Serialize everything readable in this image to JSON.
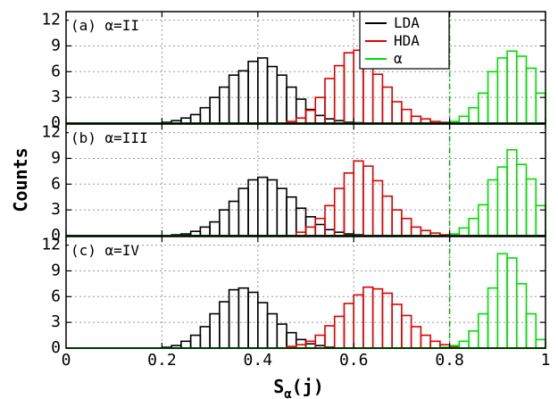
{
  "chart_data": {
    "type": "bar",
    "histogram": true,
    "xlabel": "S",
    "xlabel_sub": "α",
    "xlabel_suffix": "(j)",
    "ylabel": "Counts",
    "xlim": [
      0,
      1
    ],
    "ylim": [
      0,
      13
    ],
    "bin_width": 0.02,
    "x_ticks": [
      "0",
      "0.2",
      "0.4",
      "0.6",
      "0.8",
      "1"
    ],
    "y_ticks": [
      "0",
      "3",
      "6",
      "9",
      "12"
    ],
    "grid": true,
    "cutoff_line": 0.8,
    "series_colors": {
      "LDA": "#000000",
      "HDA": "#e00000",
      "alpha": "#00dd00"
    },
    "cutoff_color": "#00bb00",
    "legend": {
      "position": "top-right",
      "entries": [
        {
          "key": "LDA",
          "label": "LDA"
        },
        {
          "key": "HDA",
          "label": "HDA"
        },
        {
          "key": "alpha",
          "label": "α"
        }
      ]
    },
    "panels": [
      {
        "label": "(a) α=II",
        "series": {
          "LDA": {
            "x_start": 0.2,
            "values": [
              0.1,
              0.3,
              0.6,
              1.0,
              1.8,
              3.0,
              4.2,
              5.6,
              6.1,
              7.2,
              7.6,
              6.6,
              5.6,
              4.2,
              2.8,
              1.6,
              0.9,
              0.5,
              0.3,
              0.1,
              0.05
            ]
          },
          "HDA": {
            "x_start": 0.46,
            "values": [
              0.2,
              0.6,
              1.5,
              3.0,
              5.2,
              6.7,
              8.2,
              8.5,
              7.6,
              5.7,
              4.2,
              2.5,
              1.6,
              0.8,
              0.5,
              0.2,
              0.1
            ]
          },
          "alpha": {
            "x_start": 0.8,
            "values": [
              0.2,
              0.8,
              1.8,
              3.5,
              6.0,
              7.6,
              8.4,
              7.8,
              6.4,
              3.5,
              1.0
            ]
          }
        }
      },
      {
        "label": "(b) α=III",
        "series": {
          "LDA": {
            "x_start": 0.22,
            "values": [
              0.1,
              0.2,
              0.5,
              1.0,
              1.6,
              3.0,
              4.0,
              5.5,
              6.5,
              6.8,
              6.5,
              5.5,
              4.5,
              3.2,
              2.2,
              1.3,
              0.7,
              0.4,
              0.2,
              0.1
            ]
          },
          "HDA": {
            "x_start": 0.48,
            "values": [
              0.4,
              1.0,
              2.0,
              3.5,
              5.5,
              7.3,
              8.7,
              8.1,
              6.4,
              4.6,
              3.0,
              2.0,
              1.0,
              0.6,
              0.3,
              0.1
            ]
          },
          "alpha": {
            "x_start": 0.8,
            "values": [
              0.2,
              0.9,
              2.0,
              3.6,
              6.5,
              8.0,
              10.0,
              8.3,
              6.6,
              3.5,
              1.0
            ]
          }
        }
      },
      {
        "label": "(c) α=IV",
        "series": {
          "LDA": {
            "x_start": 0.2,
            "values": [
              0.1,
              0.3,
              0.8,
              1.5,
              2.5,
              4.0,
              5.4,
              6.8,
              7.0,
              6.5,
              5.3,
              4.0,
              2.8,
              1.8,
              1.0,
              0.5,
              0.3,
              0.1
            ]
          },
          "HDA": {
            "x_start": 0.46,
            "values": [
              0.2,
              0.4,
              0.8,
              1.5,
              2.6,
              3.7,
              5.2,
              6.2,
              7.1,
              6.9,
              6.4,
              5.1,
              3.8,
              2.5,
              1.5,
              0.8,
              0.4,
              0.2
            ]
          },
          "alpha": {
            "x_start": 0.78,
            "values": [
              0.1,
              0.3,
              0.8,
              2.0,
              4.0,
              7.0,
              11.0,
              10.5,
              7.5,
              4.0,
              1.0
            ]
          }
        }
      }
    ]
  }
}
